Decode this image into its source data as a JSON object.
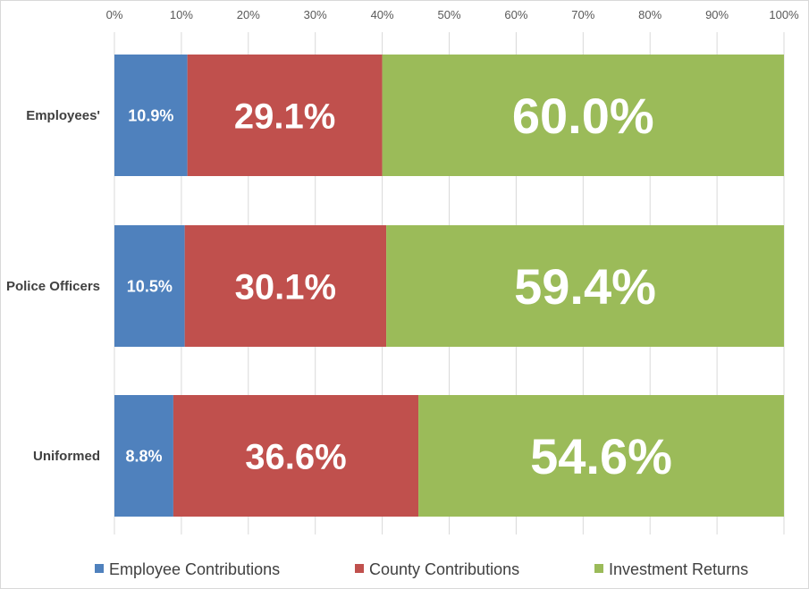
{
  "chart_data": {
    "type": "bar",
    "orientation": "horizontal",
    "stacked": "percent",
    "categories": [
      "Employees'",
      "Police Officers",
      "Uniformed"
    ],
    "series": [
      {
        "name": "Employee Contributions",
        "color": "#4f81bd",
        "values": [
          10.9,
          10.5,
          8.8
        ],
        "labels": [
          "10.9%",
          "10.5%",
          "8.8%"
        ]
      },
      {
        "name": "County Contributions",
        "color": "#c0504d",
        "values": [
          29.1,
          30.1,
          36.6
        ],
        "labels": [
          "29.1%",
          "30.1%",
          "36.6%"
        ]
      },
      {
        "name": "Investment Returns",
        "color": "#9bbb59",
        "values": [
          60.0,
          59.4,
          54.6
        ],
        "labels": [
          "60.0%",
          "59.4%",
          "54.6%"
        ]
      }
    ],
    "x_ticks": [
      "0%",
      "10%",
      "20%",
      "30%",
      "40%",
      "50%",
      "60%",
      "70%",
      "80%",
      "90%",
      "100%"
    ],
    "xlim": [
      0,
      100
    ],
    "x_axis_position": "top",
    "grid": true,
    "legend": "bottom"
  }
}
